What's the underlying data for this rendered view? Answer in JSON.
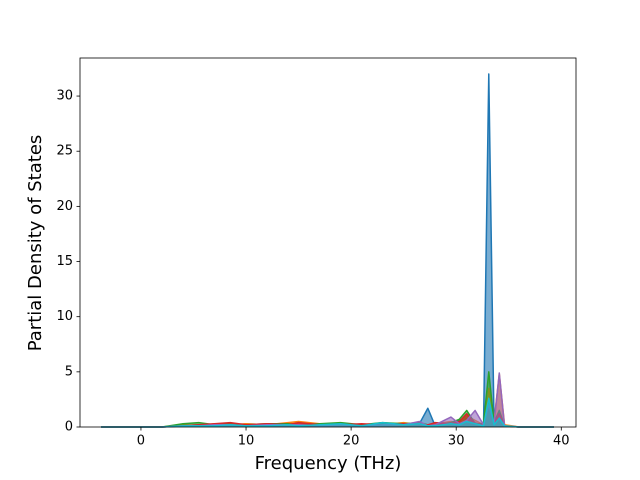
{
  "chart_data": {
    "type": "area",
    "x_label": "Frequency (THz)",
    "y_label": "Partial Density of States",
    "x": [
      -3.8,
      2,
      4,
      5.5,
      7,
      8.5,
      10,
      12,
      14,
      15,
      17,
      19,
      21,
      23,
      25,
      26.5,
      27.3,
      28,
      29.5,
      30.3,
      31,
      31.8,
      32.6,
      33.1,
      33.6,
      34.1,
      34.6,
      36,
      39.3
    ],
    "series": [
      {
        "color": "#1f77b4",
        "values": [
          0,
          0,
          0.1,
          0.2,
          0.1,
          0.2,
          0.2,
          0.2,
          0.3,
          0.3,
          0.2,
          0.3,
          0.2,
          0.3,
          0.2,
          0.3,
          1.7,
          0.1,
          0.3,
          0.6,
          0.8,
          0.4,
          0.1,
          32,
          0.3,
          0.5,
          0.1,
          0,
          0
        ]
      },
      {
        "color": "#ff7f0e",
        "values": [
          0,
          0,
          0.2,
          0.1,
          0.3,
          0.2,
          0.3,
          0.2,
          0.4,
          0.5,
          0.3,
          0.2,
          0.2,
          0.2,
          0.4,
          0.2,
          0.1,
          0.3,
          0.5,
          0.4,
          1.0,
          0.6,
          0.2,
          3.5,
          0.5,
          4.8,
          0.2,
          0,
          0
        ]
      },
      {
        "color": "#2ca02c",
        "values": [
          0,
          0,
          0.3,
          0.4,
          0.2,
          0.3,
          0.2,
          0.3,
          0.3,
          0.2,
          0.3,
          0.4,
          0.2,
          0.4,
          0.3,
          0.4,
          0.2,
          0.2,
          0.4,
          0.7,
          1.5,
          0.3,
          0.3,
          5.0,
          0.4,
          1.5,
          0.1,
          0,
          0
        ]
      },
      {
        "color": "#d62728",
        "values": [
          0,
          0,
          0.1,
          0.2,
          0.3,
          0.4,
          0.2,
          0.3,
          0.2,
          0.4,
          0.2,
          0.2,
          0.3,
          0.2,
          0.3,
          0.2,
          0.2,
          0.4,
          0.3,
          0.5,
          1.2,
          0.3,
          0.2,
          1.8,
          0.3,
          1.2,
          0.1,
          0,
          0
        ]
      },
      {
        "color": "#9467bd",
        "values": [
          0,
          0,
          0.1,
          0.1,
          0.2,
          0.2,
          0.1,
          0.2,
          0.2,
          0.2,
          0.1,
          0.2,
          0.1,
          0.2,
          0.2,
          0.5,
          0.1,
          0.2,
          0.9,
          0.3,
          0.6,
          1.5,
          0.2,
          2.0,
          0.3,
          4.9,
          0.1,
          0,
          0
        ]
      },
      {
        "color": "#17becf",
        "values": [
          0,
          0,
          0.1,
          0.1,
          0.1,
          0.2,
          0.1,
          0.1,
          0.2,
          0.1,
          0.2,
          0.3,
          0.1,
          0.4,
          0.2,
          0.3,
          0.1,
          0.1,
          0.3,
          0.2,
          0.5,
          0.3,
          0.1,
          2.6,
          0.2,
          0.8,
          0.1,
          0,
          0
        ]
      }
    ],
    "xlim": [
      -5.8,
      41.4
    ],
    "xticks": [
      0,
      10,
      20,
      30,
      40
    ],
    "ylim": [
      0,
      33.45
    ],
    "yticks": [
      0,
      5,
      10,
      15,
      20,
      25,
      30
    ]
  }
}
